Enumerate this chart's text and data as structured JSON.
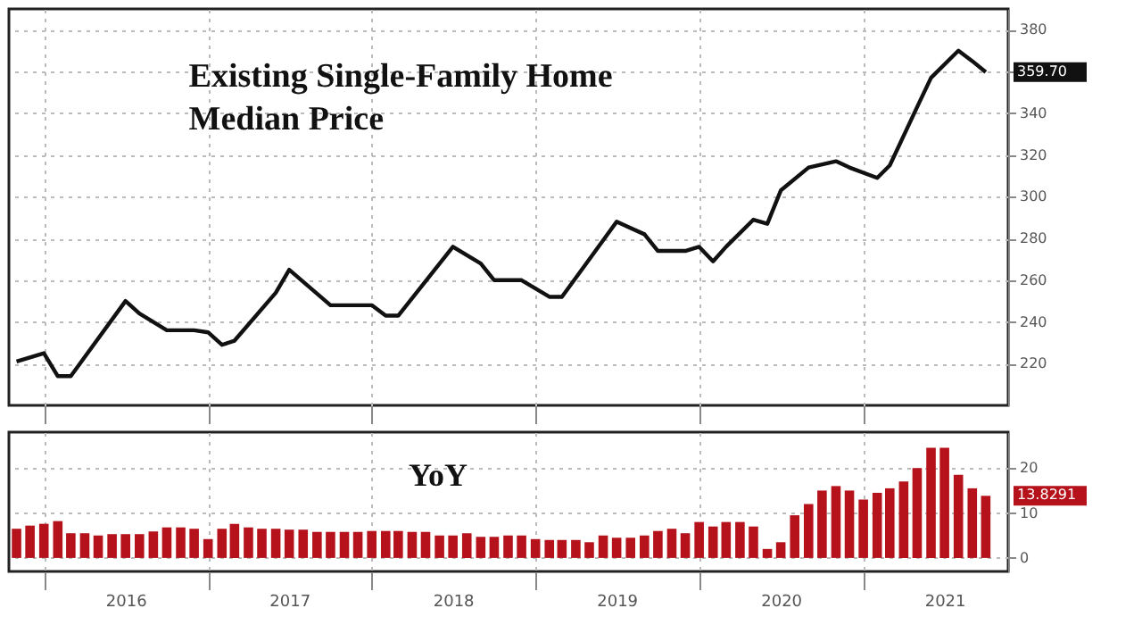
{
  "chart_data": [
    {
      "type": "line",
      "title": "Existing Single-Family Home Median Price",
      "x": [
        "2015-11",
        "2016-01",
        "2016-02",
        "2016-03",
        "2016-07",
        "2016-08",
        "2016-10",
        "2016-12",
        "2017-01",
        "2017-02",
        "2017-03",
        "2017-06",
        "2017-07",
        "2017-10",
        "2017-11",
        "2018-01",
        "2018-02",
        "2018-03",
        "2018-07",
        "2018-09",
        "2018-10",
        "2018-12",
        "2019-02",
        "2019-03",
        "2019-05",
        "2019-07",
        "2019-09",
        "2019-10",
        "2019-12",
        "2020-01",
        "2020-02",
        "2020-03",
        "2020-05",
        "2020-06",
        "2020-07",
        "2020-09",
        "2020-11",
        "2020-12",
        "2021-02",
        "2021-03",
        "2021-05",
        "2021-06",
        "2021-08",
        "2021-09",
        "2021-10"
      ],
      "series": [
        {
          "color": "#111111",
          "values": [
            221,
            225,
            214,
            214,
            250,
            244,
            236,
            236,
            235,
            229,
            231,
            254,
            265,
            248,
            248,
            248,
            243,
            243,
            276,
            268,
            260,
            260,
            252,
            252,
            270,
            288,
            282,
            274,
            274,
            276,
            269,
            276,
            289,
            287,
            303,
            314,
            317,
            314,
            309,
            315,
            343,
            357,
            370,
            365,
            359.7
          ]
        }
      ],
      "xlim": [
        "2015-10-15",
        "2021-11-20"
      ],
      "xticks": [
        {
          "value": "2016-01",
          "label": null
        },
        {
          "value": "2017-01",
          "label": null
        },
        {
          "value": "2018-01",
          "label": null
        },
        {
          "value": "2019-01",
          "label": null
        },
        {
          "value": "2020-01",
          "label": null
        },
        {
          "value": "2021-01",
          "label": null
        }
      ],
      "ylim": [
        200,
        390
      ],
      "yticks": [
        220,
        240,
        260,
        280,
        300,
        320,
        340,
        {
          "value": 360,
          "label": null
        },
        380
      ],
      "grid": true,
      "tick_labels": "y",
      "annotations": [
        "359.70"
      ]
    },
    {
      "type": "bar",
      "title": "YoY",
      "x": [
        "2015-11",
        "2015-12",
        "2016-01",
        "2016-02",
        "2016-03",
        "2016-04",
        "2016-05",
        "2016-06",
        "2016-07",
        "2016-08",
        "2016-09",
        "2016-10",
        "2016-11",
        "2016-12",
        "2017-01",
        "2017-02",
        "2017-03",
        "2017-04",
        "2017-05",
        "2017-06",
        "2017-07",
        "2017-08",
        "2017-09",
        "2017-10",
        "2017-11",
        "2017-12",
        "2018-01",
        "2018-02",
        "2018-03",
        "2018-04",
        "2018-05",
        "2018-06",
        "2018-07",
        "2018-08",
        "2018-09",
        "2018-10",
        "2018-11",
        "2018-12",
        "2019-01",
        "2019-02",
        "2019-03",
        "2019-04",
        "2019-05",
        "2019-06",
        "2019-07",
        "2019-08",
        "2019-09",
        "2019-10",
        "2019-11",
        "2019-12",
        "2020-01",
        "2020-02",
        "2020-03",
        "2020-04",
        "2020-05",
        "2020-06",
        "2020-07",
        "2020-08",
        "2020-09",
        "2020-10",
        "2020-11",
        "2020-12",
        "2021-01",
        "2021-02",
        "2021-03",
        "2021-04",
        "2021-05",
        "2021-06",
        "2021-07",
        "2021-08",
        "2021-09",
        "2021-10"
      ],
      "series": [
        {
          "color": "#b5121b",
          "values": [
            6.5,
            7.2,
            7.6,
            8.2,
            5.5,
            5.5,
            5,
            5.3,
            5.3,
            5.3,
            5.9,
            6.8,
            6.8,
            6.5,
            4.2,
            6.5,
            7.6,
            6.8,
            6.5,
            6.5,
            6.3,
            6.3,
            5.8,
            5.8,
            5.8,
            5.8,
            6,
            6,
            6,
            5.8,
            5.8,
            5,
            5,
            5.5,
            4.7,
            4.7,
            5,
            5,
            4.2,
            4,
            4,
            4,
            3.5,
            5,
            4.5,
            4.5,
            5,
            6,
            6.5,
            5.5,
            8,
            7,
            8,
            8,
            7,
            2,
            3.5,
            9.5,
            12,
            15,
            16,
            15,
            13,
            14.5,
            15.5,
            17,
            20,
            24.5,
            24.5,
            18.5,
            15.5,
            13.8291
          ]
        }
      ],
      "xlim": [
        "2015-10-15",
        "2021-11-20"
      ],
      "xticks": [
        {
          "value": "2016-01",
          "label": null
        },
        {
          "value": "2016-07",
          "label": "2016"
        },
        {
          "value": "2017-01",
          "label": null
        },
        {
          "value": "2017-07",
          "label": "2017"
        },
        {
          "value": "2018-01",
          "label": null
        },
        {
          "value": "2018-07",
          "label": "2018"
        },
        {
          "value": "2019-01",
          "label": null
        },
        {
          "value": "2019-07",
          "label": "2019"
        },
        {
          "value": "2020-01",
          "label": null
        },
        {
          "value": "2020-07",
          "label": "2020"
        },
        {
          "value": "2021-01",
          "label": null
        },
        {
          "value": "2021-07",
          "label": "2021"
        }
      ],
      "ylim": [
        -3,
        28
      ],
      "yticks": [
        0,
        10,
        20
      ],
      "grid": true,
      "annotations": [
        "13.8291"
      ]
    }
  ]
}
